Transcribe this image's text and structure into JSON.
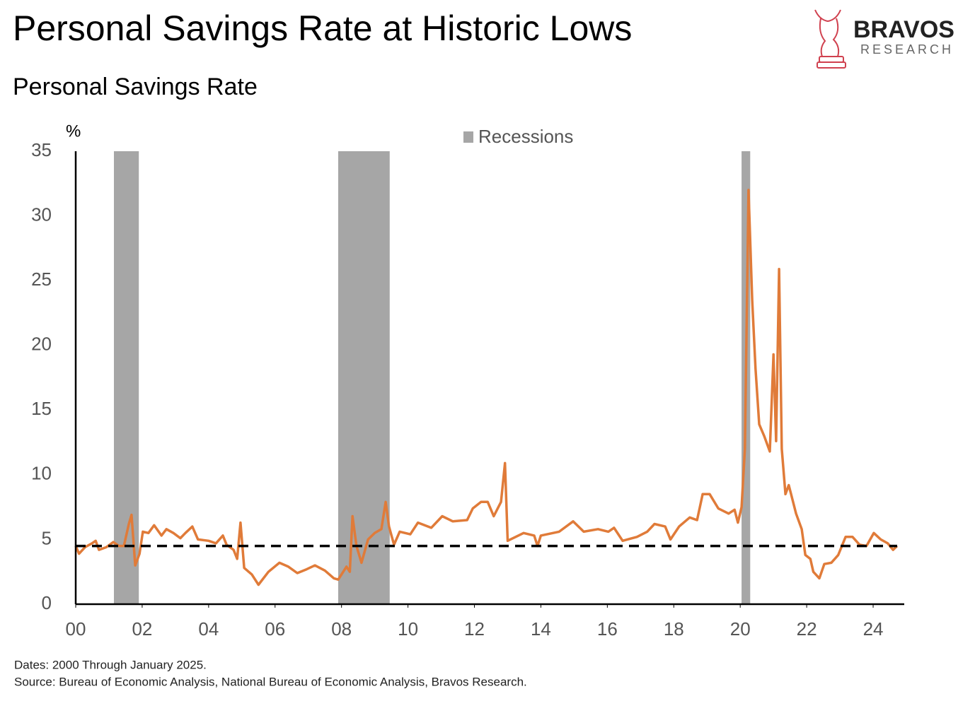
{
  "chart_data": {
    "type": "line",
    "title": "Personal Savings Rate at Historic Lows",
    "subtitle": "Personal Savings Rate",
    "y_unit": "%",
    "brand": {
      "name": "BRAVOS",
      "tagline": "RESEARCH"
    },
    "notes": [
      "Dates: 2000 Through January 2025.",
      "Source: Bureau of Economic Analysis, National Bureau of Economic Analysis, Bravos Research."
    ],
    "color": "#e07b39",
    "x": [
      2000.0,
      2000.1,
      2000.28,
      2000.49,
      2000.6,
      2000.7,
      2000.92,
      2001.13,
      2001.3,
      2001.45,
      2001.6,
      2001.68,
      2001.79,
      2001.92,
      2002.02,
      2002.19,
      2002.36,
      2002.58,
      2002.73,
      2002.94,
      2003.15,
      2003.3,
      2003.51,
      2003.68,
      2004.0,
      2004.22,
      2004.43,
      2004.54,
      2004.75,
      2004.86,
      2004.96,
      2005.07,
      2005.3,
      2005.5,
      2005.8,
      2006.13,
      2006.4,
      2006.67,
      2006.95,
      2007.2,
      2007.5,
      2007.77,
      2007.9,
      2008.15,
      2008.25,
      2008.33,
      2008.45,
      2008.6,
      2008.8,
      2009.0,
      2009.2,
      2009.33,
      2009.43,
      2009.58,
      2009.75,
      2010.07,
      2010.3,
      2010.7,
      2011.03,
      2011.35,
      2011.78,
      2011.95,
      2012.2,
      2012.4,
      2012.58,
      2012.8,
      2012.92,
      2013.0,
      2013.48,
      2013.8,
      2013.9,
      2014.0,
      2014.55,
      2014.97,
      2015.29,
      2015.72,
      2016.03,
      2016.2,
      2016.46,
      2016.89,
      2017.2,
      2017.42,
      2017.74,
      2017.9,
      2018.16,
      2018.48,
      2018.7,
      2018.87,
      2019.08,
      2019.34,
      2019.65,
      2019.83,
      2019.93,
      2020.04,
      2020.14,
      2020.25,
      2020.36,
      2020.46,
      2020.57,
      2020.72,
      2020.89,
      2021.0,
      2021.08,
      2021.17,
      2021.25,
      2021.36,
      2021.46,
      2021.68,
      2021.85,
      2021.96,
      2022.11,
      2022.2,
      2022.38,
      2022.53,
      2022.74,
      2022.95,
      2023.17,
      2023.38,
      2023.59,
      2023.8,
      2024.02,
      2024.23,
      2024.44,
      2024.6,
      2024.72
    ],
    "values": [
      4.5,
      3.9,
      4.4,
      4.7,
      4.9,
      4.2,
      4.4,
      4.8,
      4.5,
      4.5,
      6.2,
      6.9,
      3.0,
      3.9,
      5.6,
      5.5,
      6.1,
      5.3,
      5.8,
      5.5,
      5.1,
      5.5,
      6.0,
      5.0,
      4.9,
      4.7,
      5.3,
      4.6,
      4.2,
      3.5,
      6.3,
      2.8,
      2.3,
      1.5,
      2.5,
      3.2,
      2.9,
      2.4,
      2.7,
      3.0,
      2.6,
      2.0,
      1.9,
      2.9,
      2.5,
      6.8,
      4.5,
      3.2,
      5.0,
      5.5,
      5.8,
      7.9,
      6.0,
      4.6,
      5.6,
      5.4,
      6.3,
      5.9,
      6.8,
      6.4,
      6.5,
      7.4,
      7.9,
      7.9,
      6.8,
      7.9,
      10.9,
      4.9,
      5.5,
      5.3,
      4.5,
      5.3,
      5.6,
      6.4,
      5.6,
      5.8,
      5.6,
      5.9,
      4.9,
      5.2,
      5.6,
      6.2,
      6.0,
      5.0,
      6.0,
      6.7,
      6.5,
      8.5,
      8.5,
      7.4,
      7.0,
      7.3,
      6.3,
      7.5,
      12.0,
      32.0,
      23.5,
      18.2,
      13.9,
      13.0,
      11.8,
      19.3,
      12.6,
      25.9,
      12.0,
      8.5,
      9.2,
      7.0,
      5.8,
      3.8,
      3.5,
      2.5,
      2.0,
      3.1,
      3.2,
      3.8,
      5.2,
      5.2,
      4.6,
      4.5,
      5.5,
      5.0,
      4.7,
      4.2,
      4.5
    ],
    "reference_line": 4.5,
    "recessions": {
      "name": "Recessions",
      "color": "#a6a6a6",
      "spans": [
        [
          2001.15,
          2001.9
        ],
        [
          2007.9,
          2009.45
        ],
        [
          2020.04,
          2020.3
        ]
      ]
    },
    "xlim": [
      2000,
      2025
    ],
    "xticks": [
      {
        "value": 2000,
        "label": "00"
      },
      {
        "value": 2002,
        "label": "02"
      },
      {
        "value": 2004,
        "label": "04"
      },
      {
        "value": 2006,
        "label": "06"
      },
      {
        "value": 2008,
        "label": "08"
      },
      {
        "value": 2010,
        "label": "10"
      },
      {
        "value": 2012,
        "label": "12"
      },
      {
        "value": 2014,
        "label": "14"
      },
      {
        "value": 2016,
        "label": "16"
      },
      {
        "value": 2018,
        "label": "18"
      },
      {
        "value": 2020,
        "label": "20"
      },
      {
        "value": 2022,
        "label": "22"
      },
      {
        "value": 2024,
        "label": "24"
      }
    ],
    "ylim": [
      0,
      35
    ],
    "yticks": [
      0,
      5,
      10,
      15,
      20,
      25,
      30,
      35
    ]
  }
}
